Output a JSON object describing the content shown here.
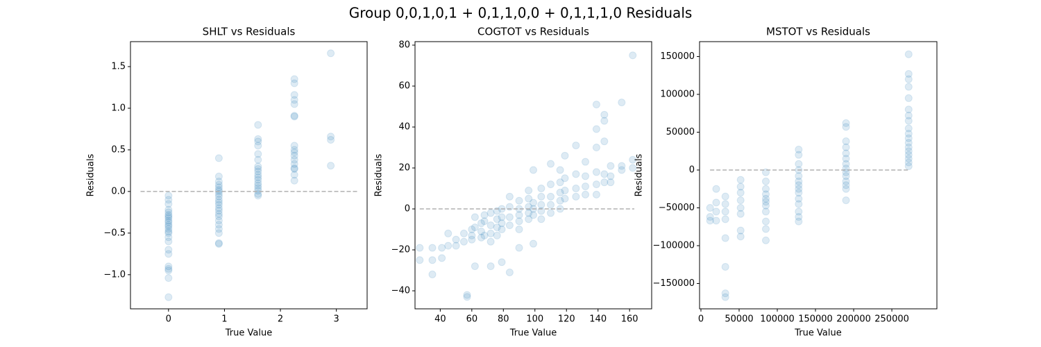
{
  "title": "Group 0,0,1,0,1 + 0,1,1,0,0 + 0,1,1,1,0 Residuals",
  "chart_data": [
    {
      "type": "scatter",
      "title": "SHLT vs Residuals",
      "xlabel": "True Value",
      "ylabel": "Residuals",
      "color": "#1f77b4",
      "xlim": [
        -0.68,
        3.55
      ],
      "ylim": [
        -1.41,
        1.8
      ],
      "xticks": [
        0,
        1,
        2,
        3
      ],
      "yticks": [
        {
          "value": -1.0,
          "label": "−1.0"
        },
        {
          "value": -0.5,
          "label": "−0.5"
        },
        {
          "value": 0,
          "label": "0.0"
        },
        0.5,
        {
          "value": 1.0,
          "label": "1.0"
        },
        1.5
      ],
      "hline": {
        "y": 0,
        "xmin": -0.5,
        "xmax": 3.4
      },
      "x": [
        0,
        0,
        0,
        0,
        0,
        0,
        0,
        0,
        0,
        0,
        0,
        0,
        0,
        0,
        0,
        0,
        0,
        0,
        0,
        0,
        0,
        0,
        0,
        0,
        0.9,
        0.9,
        0.9,
        0.9,
        0.9,
        0.9,
        0.9,
        0.9,
        0.9,
        0.9,
        0.9,
        0.9,
        0.9,
        0.9,
        0.9,
        0.9,
        0.9,
        0.9,
        0.9,
        0.9,
        0.9,
        0.9,
        1.6,
        1.6,
        1.6,
        1.6,
        1.6,
        1.6,
        1.6,
        1.6,
        1.6,
        1.6,
        1.6,
        1.6,
        1.6,
        1.6,
        1.6,
        1.6,
        1.6,
        1.6,
        2.25,
        2.25,
        2.25,
        2.25,
        2.25,
        2.25,
        2.25,
        2.25,
        2.25,
        2.25,
        2.25,
        2.25,
        2.25,
        2.25,
        2.25,
        2.25,
        2.25,
        2.9,
        2.9,
        2.9,
        2.9
      ],
      "values": [
        -0.05,
        -0.1,
        -0.15,
        -0.22,
        -0.25,
        -0.28,
        -0.3,
        -0.32,
        -0.35,
        -0.37,
        -0.4,
        -0.42,
        -0.45,
        -0.48,
        -0.5,
        -0.55,
        -0.6,
        -0.7,
        -0.75,
        -0.9,
        -0.93,
        -0.95,
        -1.04,
        -1.27,
        0.4,
        0.18,
        0.12,
        0.08,
        0.05,
        0.02,
        0,
        -0.03,
        -0.06,
        -0.1,
        -0.13,
        -0.16,
        -0.2,
        -0.23,
        -0.27,
        -0.3,
        -0.35,
        -0.4,
        -0.45,
        -0.5,
        -0.62,
        -0.63,
        0.8,
        0.63,
        0.6,
        0.55,
        0.45,
        0.38,
        0.3,
        0.27,
        0.24,
        0.2,
        0.17,
        0.14,
        0.1,
        0.07,
        0.04,
        0.01,
        -0.03,
        -0.05,
        1.35,
        1.3,
        1.16,
        1.1,
        1.05,
        0.91,
        0.9,
        0.55,
        0.5,
        0.47,
        0.43,
        0.38,
        0.33,
        0.28,
        0.27,
        0.2,
        0.13,
        1.66,
        0.66,
        0.62,
        0.31
      ]
    },
    {
      "type": "scatter",
      "title": "COGTOT vs Residuals",
      "xlabel": "True Value",
      "ylabel": "Residuals",
      "color": "#1f77b4",
      "xlim": [
        24,
        174
      ],
      "ylim": [
        -48.8,
        81.7
      ],
      "xticks": [
        40,
        60,
        80,
        100,
        120,
        140,
        160
      ],
      "yticks": [
        {
          "value": -40,
          "label": "−40"
        },
        {
          "value": -20,
          "label": "−20"
        },
        0,
        20,
        40,
        60,
        80
      ],
      "hline": {
        "y": 0,
        "xmin": 27,
        "xmax": 163
      },
      "x": [
        27,
        27,
        35,
        35,
        35,
        41,
        41,
        45,
        45,
        50,
        50,
        55,
        55,
        57,
        57,
        60,
        60,
        60,
        62,
        62,
        62,
        66,
        66,
        66,
        68,
        68,
        68,
        72,
        72,
        72,
        72,
        72,
        76,
        76,
        76,
        76,
        79,
        79,
        79,
        79,
        79,
        84,
        84,
        84,
        84,
        84,
        90,
        90,
        90,
        90,
        90,
        90,
        96,
        96,
        96,
        96,
        96,
        99,
        99,
        99,
        99,
        99,
        104,
        104,
        104,
        104,
        104,
        110,
        110,
        110,
        110,
        110,
        116,
        116,
        116,
        116,
        116,
        119,
        119,
        119,
        119,
        126,
        126,
        126,
        126,
        132,
        132,
        132,
        132,
        139,
        139,
        139,
        139,
        139,
        139,
        144,
        144,
        144,
        144,
        144,
        148,
        148,
        148,
        155,
        155,
        155,
        162,
        162,
        162
      ],
      "values": [
        -19,
        -25,
        -19,
        -25,
        -32,
        -19,
        -24,
        -12,
        -18,
        -15,
        -18,
        -12,
        -16,
        -42,
        -43,
        -10,
        -13,
        -15,
        -4,
        -9,
        -28,
        -7,
        -11,
        -14,
        -3,
        -6,
        -13,
        -2,
        -8,
        -12,
        -16,
        -28,
        -1,
        -5,
        -9,
        -13,
        0,
        -4,
        -7,
        -10,
        -26,
        6,
        1,
        -4,
        -8,
        -31,
        4,
        0,
        -3,
        -6,
        -10,
        -19,
        9,
        5,
        1,
        -2,
        -5,
        19,
        3,
        0,
        -3,
        -17,
        10,
        6,
        2,
        -1,
        -5,
        22,
        12,
        6,
        2,
        -2,
        19,
        13,
        8,
        4,
        0,
        26,
        15,
        9,
        5,
        31,
        17,
        10,
        6,
        23,
        16,
        11,
        7,
        51,
        39,
        30,
        18,
        12,
        7,
        46,
        43,
        33,
        17,
        13,
        21,
        16,
        13,
        52,
        21,
        19,
        75,
        24,
        20
      ]
    },
    {
      "type": "scatter",
      "title": "MSTOT vs Residuals",
      "xlabel": "True Value",
      "ylabel": "Residuals",
      "color": "#1f77b4",
      "xlim": [
        -1800,
        309000
      ],
      "ylim": [
        -183500,
        169700
      ],
      "xticks": [
        0,
        50000,
        100000,
        150000,
        200000,
        250000
      ],
      "yticks": [
        {
          "value": -150000,
          "label": "−150000"
        },
        {
          "value": -100000,
          "label": "−100000"
        },
        {
          "value": -50000,
          "label": "−50000"
        },
        0,
        50000,
        100000,
        150000
      ],
      "hline": {
        "y": 0,
        "xmin": 12000,
        "xmax": 272000
      },
      "x": [
        12000,
        12000,
        12000,
        20000,
        20000,
        20000,
        20000,
        32000,
        32000,
        32000,
        32000,
        32000,
        32000,
        32000,
        32000,
        52000,
        52000,
        52000,
        52000,
        52000,
        52000,
        52000,
        52000,
        85000,
        85000,
        85000,
        85000,
        85000,
        85000,
        85000,
        85000,
        85000,
        85000,
        85000,
        128000,
        128000,
        128000,
        128000,
        128000,
        128000,
        128000,
        128000,
        128000,
        128000,
        128000,
        128000,
        128000,
        128000,
        190000,
        190000,
        190000,
        190000,
        190000,
        190000,
        190000,
        190000,
        190000,
        190000,
        190000,
        190000,
        190000,
        190000,
        272000,
        272000,
        272000,
        272000,
        272000,
        272000,
        272000,
        272000,
        272000,
        272000,
        272000,
        272000,
        272000,
        272000,
        272000,
        272000,
        272000,
        272000
      ],
      "values": [
        -50000,
        -62000,
        -67000,
        -25000,
        -43000,
        -55000,
        -67000,
        -35000,
        -45000,
        -55000,
        -65000,
        -90000,
        -128000,
        -163000,
        -168000,
        -13000,
        -22000,
        -30000,
        -40000,
        -50000,
        -58000,
        -80000,
        -88000,
        -3000,
        -15000,
        -25000,
        -32000,
        -38000,
        -42000,
        -47000,
        -55000,
        -68000,
        -78000,
        -93000,
        27000,
        20000,
        8000,
        0,
        -8000,
        -15000,
        -20000,
        -25000,
        -30000,
        -38000,
        -45000,
        -55000,
        -62000,
        -68000,
        62000,
        57000,
        38000,
        30000,
        22000,
        15000,
        8000,
        2000,
        -3000,
        -8000,
        -15000,
        -20000,
        -25000,
        -40000,
        153000,
        127000,
        120000,
        110000,
        95000,
        80000,
        72000,
        65000,
        55000,
        48000,
        42000,
        36000,
        30000,
        25000,
        20000,
        15000,
        10000,
        5000
      ]
    }
  ]
}
